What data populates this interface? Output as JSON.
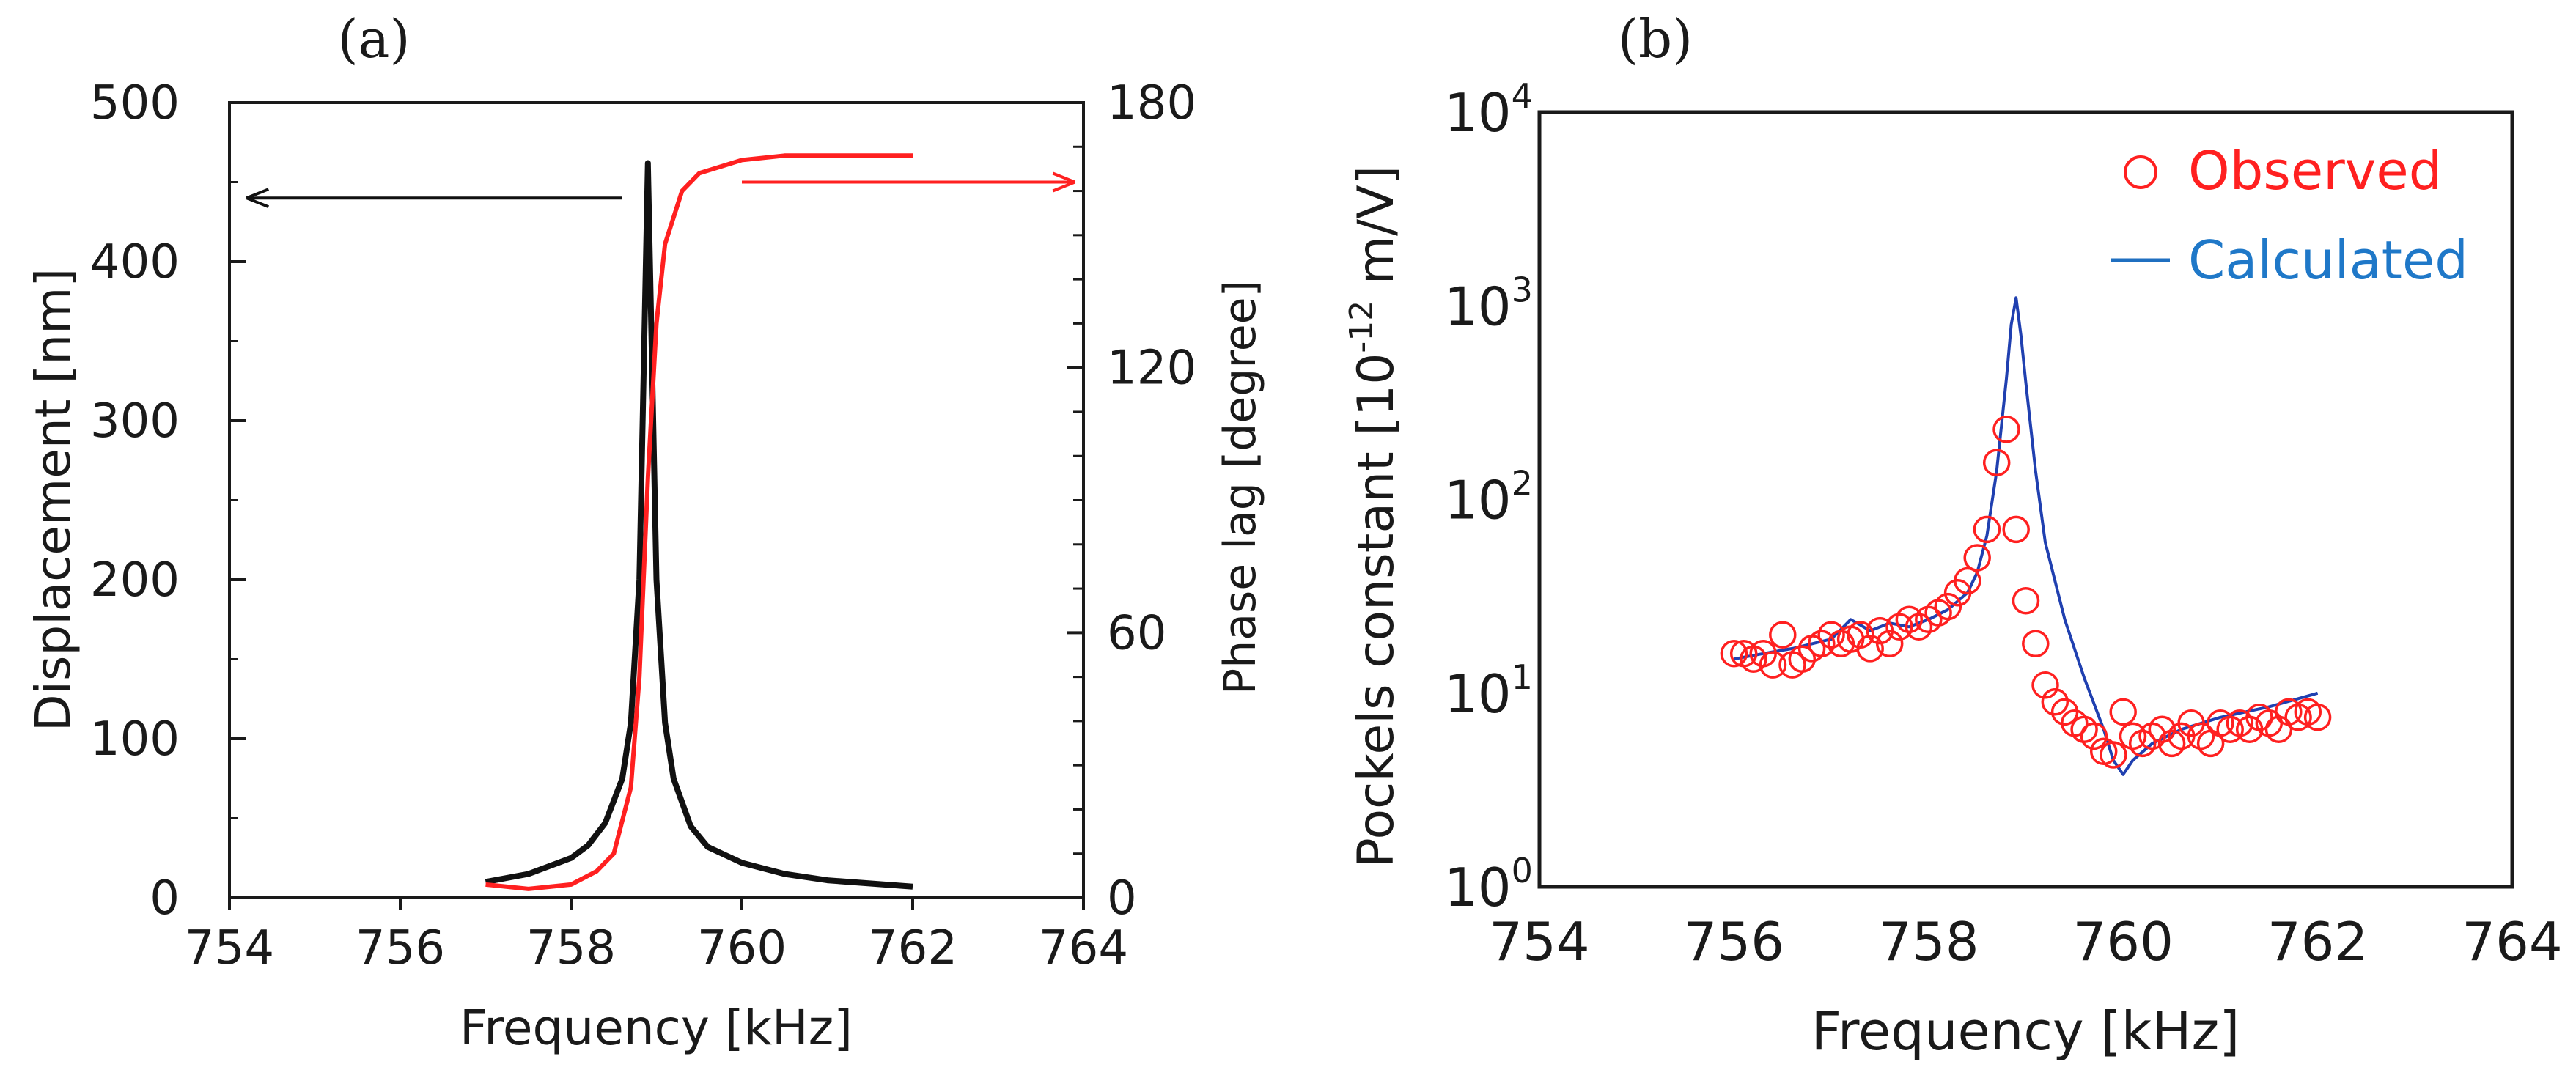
{
  "chart_data": [
    {
      "panel": "(a)",
      "type": "line",
      "xlabel": "Frequency [kHz]",
      "ylabel": "Displacement [nm]",
      "y2label": "Phase lag [degree]",
      "xlim": [
        754,
        764
      ],
      "ylim": [
        0,
        500
      ],
      "y2lim": [
        0,
        180
      ],
      "x_ticks": [
        "754",
        "756",
        "758",
        "760",
        "762",
        "764"
      ],
      "y_ticks": [
        "0",
        "100",
        "200",
        "300",
        "400",
        "500"
      ],
      "y2_ticks": [
        "0",
        "60",
        "120",
        "180"
      ],
      "series": [
        {
          "name": "Displacement",
          "axis": "left",
          "color": "#111111",
          "x": [
            757.0,
            757.5,
            758.0,
            758.2,
            758.4,
            758.6,
            758.7,
            758.8,
            758.85,
            758.9,
            758.95,
            759.0,
            759.1,
            759.2,
            759.4,
            759.6,
            760.0,
            760.5,
            761.0,
            762.0
          ],
          "y": [
            10,
            15,
            25,
            33,
            47,
            75,
            110,
            200,
            330,
            462,
            330,
            200,
            110,
            75,
            45,
            32,
            22,
            15,
            11,
            7
          ]
        },
        {
          "name": "Phase lag",
          "axis": "right",
          "color": "#ff2020",
          "x": [
            757.0,
            757.5,
            758.0,
            758.3,
            758.5,
            758.7,
            758.8,
            758.9,
            759.0,
            759.1,
            759.3,
            759.5,
            760.0,
            760.5,
            761.0,
            762.0
          ],
          "y": [
            3,
            2,
            3,
            6,
            10,
            25,
            50,
            95,
            130,
            148,
            160,
            164,
            167,
            168,
            168,
            168
          ]
        }
      ],
      "annotations": [
        {
          "type": "arrow",
          "color": "#111111",
          "direction": "left",
          "y_data": 440,
          "x_from": 758.6,
          "x_to": 754.2
        },
        {
          "type": "arrow",
          "color": "#ff2020",
          "direction": "right",
          "y_data": 162,
          "x_from": 760.0,
          "x_to": 763.9
        }
      ]
    },
    {
      "panel": "(b)",
      "type": "scatter",
      "xlabel": "Frequency [kHz]",
      "ylabel": "Pockels constant [10",
      "ylabel_sup": "-12",
      "ylabel_unit": " m/V]",
      "xlim": [
        754,
        764
      ],
      "ylim_log10": [
        0,
        4
      ],
      "x_ticks": [
        "754",
        "756",
        "758",
        "760",
        "762",
        "764"
      ],
      "y_ticks_base": "10",
      "y_ticks_exp": [
        "0",
        "1",
        "2",
        "3",
        "4"
      ],
      "legend_position": "top-right",
      "series": [
        {
          "name": "Observed",
          "marker": "open-circle",
          "color": "#ff2020",
          "x": [
            756.0,
            756.1,
            756.2,
            756.3,
            756.4,
            756.5,
            756.6,
            756.7,
            756.8,
            756.9,
            757.0,
            757.1,
            757.2,
            757.3,
            757.4,
            757.5,
            757.6,
            757.7,
            757.8,
            757.9,
            758.0,
            758.1,
            758.2,
            758.3,
            758.4,
            758.5,
            758.6,
            758.7,
            758.8,
            758.9,
            759.0,
            759.1,
            759.2,
            759.3,
            759.4,
            759.5,
            759.6,
            759.7,
            759.8,
            759.9,
            760.0,
            760.1,
            760.2,
            760.3,
            760.4,
            760.5,
            760.6,
            760.7,
            760.8,
            760.9,
            761.0,
            761.1,
            761.2,
            761.3,
            761.4,
            761.5,
            761.6,
            761.7,
            761.8,
            761.9,
            762.0
          ],
          "y": [
            16,
            16,
            15,
            16,
            14,
            20,
            14,
            15,
            17,
            18,
            20,
            18,
            19,
            20,
            17,
            21,
            18,
            22,
            24,
            22,
            24,
            26,
            28,
            33,
            38,
            50,
            70,
            155,
            230,
            70,
            30,
            18,
            11,
            9,
            8,
            7,
            6.5,
            6,
            5,
            4.8,
            8,
            6,
            5.5,
            6,
            6.5,
            5.5,
            6,
            7,
            6,
            5.5,
            7,
            6.5,
            7,
            6.5,
            7.5,
            7,
            6.5,
            8,
            7.5,
            8,
            7.5
          ]
        },
        {
          "name": "Calculated",
          "marker": "line",
          "color": "#2040b0",
          "x": [
            756.0,
            756.3,
            756.6,
            757.0,
            757.2,
            757.4,
            757.6,
            757.8,
            758.0,
            758.2,
            758.4,
            758.5,
            758.6,
            758.7,
            758.8,
            758.85,
            758.9,
            758.95,
            759.0,
            759.1,
            759.2,
            759.4,
            759.6,
            759.8,
            759.9,
            760.0,
            760.1,
            760.3,
            760.6,
            761.0,
            761.5,
            762.0
          ],
          "y": [
            15,
            16,
            17,
            19,
            24,
            21,
            23,
            22,
            24,
            27,
            33,
            42,
            65,
            140,
            420,
            800,
            1100,
            700,
            400,
            140,
            60,
            24,
            12,
            6.5,
            4.5,
            3.8,
            4.5,
            5.5,
            6.5,
            7.5,
            8.5,
            10
          ]
        }
      ]
    }
  ]
}
